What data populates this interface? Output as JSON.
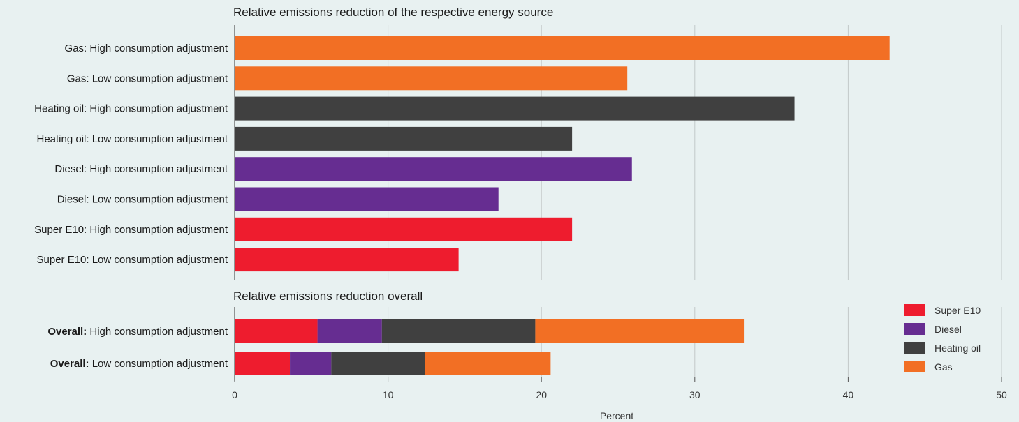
{
  "chart_data": [
    {
      "type": "bar",
      "orientation": "horizontal",
      "title": "Relative emissions reduction of the respective energy source",
      "categories": [
        {
          "prefix": "Gas:",
          "suffix": "High consumption adjustment",
          "value": 42.7,
          "series": "Gas"
        },
        {
          "prefix": "Gas:",
          "suffix": "Low consumption adjustment",
          "value": 25.6,
          "series": "Gas"
        },
        {
          "prefix": "Heating oil:",
          "suffix": "High consumption adjustment",
          "value": 36.5,
          "series": "Heating oil"
        },
        {
          "prefix": "Heating oil:",
          "suffix": "Low consumption adjustment",
          "value": 22.0,
          "series": "Heating oil"
        },
        {
          "prefix": "Diesel:",
          "suffix": "High consumption adjustment",
          "value": 25.9,
          "series": "Diesel"
        },
        {
          "prefix": "Diesel:",
          "suffix": "Low consumption adjustment",
          "value": 17.2,
          "series": "Diesel"
        },
        {
          "prefix": "Super E10:",
          "suffix": "High consumption adjustment",
          "value": 22.0,
          "series": "Super E10"
        },
        {
          "prefix": "Super E10:",
          "suffix": "Low consumption adjustment",
          "value": 14.6,
          "series": "Super E10"
        }
      ],
      "xlim": [
        0,
        50
      ]
    },
    {
      "type": "bar",
      "orientation": "horizontal",
      "stacked": true,
      "title": "Relative emissions reduction overall",
      "categories": [
        {
          "prefix": "Overall:",
          "suffix": "High consumption adjustment"
        },
        {
          "prefix": "Overall:",
          "suffix": "Low consumption adjustment"
        }
      ],
      "series": [
        {
          "name": "Super E10",
          "values": [
            5.4,
            3.6
          ]
        },
        {
          "name": "Diesel",
          "values": [
            4.2,
            2.7
          ]
        },
        {
          "name": "Heating oil",
          "values": [
            10.0,
            6.1
          ]
        },
        {
          "name": "Gas",
          "values": [
            13.6,
            8.2
          ]
        }
      ],
      "xlim": [
        0,
        50
      ],
      "xlabel": "Percent",
      "xticks": [
        "0",
        "10",
        "20",
        "30",
        "40",
        "50"
      ],
      "legend_position": "right",
      "grid": true
    }
  ],
  "colors": {
    "Super E10": "#ee1c2e",
    "Diesel": "#662d91",
    "Heating oil": "#404040",
    "Gas": "#f26f24"
  }
}
